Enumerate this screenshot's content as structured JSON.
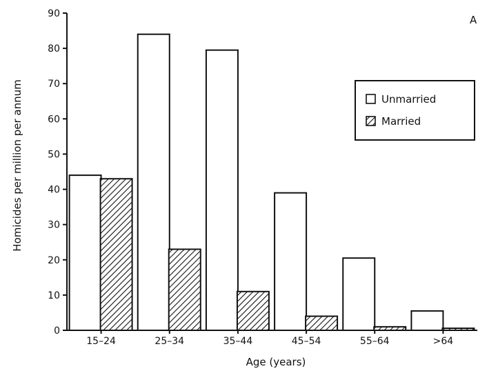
{
  "panel_label": "A",
  "chart_data": {
    "type": "bar",
    "title": "",
    "xlabel": "Age (years)",
    "ylabel": "Homicides per million per annum",
    "categories": [
      "15–24",
      "25–34",
      "35–44",
      "45–54",
      "55–64",
      ">64"
    ],
    "ylim": [
      0,
      90
    ],
    "yticks": [
      0,
      10,
      20,
      30,
      40,
      50,
      60,
      70,
      80,
      90
    ],
    "series": [
      {
        "name": "Unmarried",
        "values": [
          44,
          84,
          79.5,
          39,
          20.5,
          5.5
        ],
        "fill": "#ffffff",
        "pattern": "none"
      },
      {
        "name": "Married",
        "values": [
          43,
          23,
          11,
          4,
          1,
          0
        ],
        "fill": "#ffffff",
        "pattern": "diagonal-hatch"
      }
    ],
    "legend": {
      "position": "upper-right",
      "entries": [
        "Unmarried",
        "Married"
      ]
    },
    "grid": false,
    "colors": {
      "stroke": "#111111",
      "background": "#ffffff"
    }
  }
}
